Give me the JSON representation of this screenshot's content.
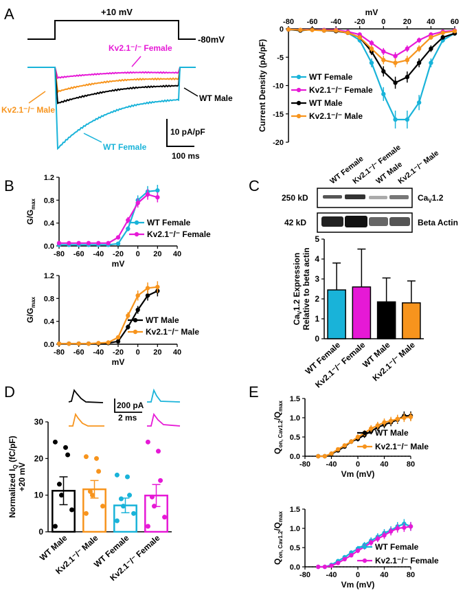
{
  "colors": {
    "wt_female": "#19b3d9",
    "kv_female": "#e619d6",
    "wt_male": "#000000",
    "kv_male": "#f7941d"
  },
  "panel_letters": {
    "A": "A",
    "B": "B",
    "C": "C",
    "D": "D",
    "E": "E"
  },
  "panel_a_traces": {
    "protocol_top": "+10 mV",
    "protocol_hold": "-80mV",
    "labels": {
      "kv_female": "Kv2.1⁻/⁻ Female",
      "kv_male": "Kv2.1⁻/⁻ Male",
      "wt_male": "WT Male",
      "wt_female": "WT Female"
    },
    "scale_y": "10 pA/pF",
    "scale_x": "100 ms"
  },
  "chart_data": [
    {
      "id": "iv",
      "type": "line",
      "panel": "A",
      "xlabel": "mV",
      "ylabel": "Current Density (pA/pF)",
      "xlim": [
        -80,
        60
      ],
      "ylim": [
        -20,
        0
      ],
      "xticks": [
        "-80",
        "-60",
        "-40",
        "-20",
        "0",
        "20",
        "40",
        "60"
      ],
      "yticks": [
        "0",
        "-5",
        "-10",
        "-15",
        "-20"
      ],
      "x": [
        -80,
        -70,
        -60,
        -50,
        -40,
        -30,
        -20,
        -10,
        0,
        10,
        20,
        30,
        40,
        50,
        60
      ],
      "series": [
        {
          "name": "WT Female",
          "color_key": "wt_female",
          "values": [
            -0.1,
            -0.3,
            -0.1,
            -0.2,
            -0.3,
            -0.7,
            -2,
            -6,
            -11.5,
            -16,
            -16,
            -13,
            -6,
            -2,
            -0.8
          ]
        },
        {
          "name": "Kv2.1⁻/⁻ Female",
          "color_key": "kv_female",
          "values": [
            -0.1,
            -0.2,
            -0.1,
            -0.2,
            -0.2,
            -0.5,
            -1,
            -2.5,
            -4,
            -4.8,
            -3.5,
            -2,
            -1,
            -0.5,
            -0.3
          ]
        },
        {
          "name": "WT Male",
          "color_key": "wt_male",
          "values": [
            -0.1,
            -0.3,
            -0.1,
            -0.3,
            -0.4,
            -0.7,
            -1.5,
            -4,
            -7.5,
            -9.5,
            -8.5,
            -6,
            -3.5,
            -1.5,
            -0.8
          ]
        },
        {
          "name": "Kv2.1⁻/⁻ Male",
          "color_key": "kv_male",
          "values": [
            -0.1,
            -0.2,
            -0.2,
            -0.3,
            -0.3,
            -0.7,
            -1.5,
            -3.5,
            -5.5,
            -6,
            -5.5,
            -3.5,
            -1.5,
            -0.7,
            -0.4
          ]
        }
      ]
    },
    {
      "id": "gv_female",
      "type": "line",
      "panel": "B",
      "xlabel": "mV",
      "ylabel": "G/G",
      "ylabel_sub": "max",
      "xlim": [
        -80,
        40
      ],
      "ylim": [
        0,
        1.2
      ],
      "xticks": [
        "-80",
        "-60",
        "-40",
        "-20",
        "0",
        "20",
        "40"
      ],
      "yticks": [
        "0.0",
        "0.4",
        "0.8",
        "1.2"
      ],
      "x": [
        -80,
        -70,
        -60,
        -50,
        -40,
        -30,
        -20,
        -10,
        0,
        10,
        20
      ],
      "series": [
        {
          "name": "WT Female",
          "color_key": "wt_female",
          "values": [
            0.02,
            0.02,
            0.02,
            0.02,
            0.02,
            0.02,
            0.04,
            0.3,
            0.8,
            0.95,
            0.97
          ]
        },
        {
          "name": "Kv2.1⁻/⁻ Female",
          "color_key": "kv_female",
          "values": [
            0.05,
            0.05,
            0.05,
            0.05,
            0.05,
            0.05,
            0.15,
            0.45,
            0.75,
            0.9,
            0.85
          ]
        }
      ]
    },
    {
      "id": "gv_male",
      "type": "line",
      "panel": "B",
      "xlabel": "mV",
      "ylabel": "G/G",
      "ylabel_sub": "max",
      "xlim": [
        -80,
        40
      ],
      "ylim": [
        0,
        1.2
      ],
      "xticks": [
        "-80",
        "-60",
        "-40",
        "-20",
        "0",
        "20",
        "40"
      ],
      "yticks": [
        "0.0",
        "0.4",
        "0.8",
        "1.2"
      ],
      "x": [
        -80,
        -70,
        -60,
        -50,
        -40,
        -30,
        -20,
        -10,
        0,
        10,
        20
      ],
      "series": [
        {
          "name": "WT Male",
          "color_key": "wt_male",
          "values": [
            0.01,
            0.01,
            0.01,
            0.01,
            0.01,
            0.02,
            0.05,
            0.3,
            0.6,
            0.85,
            0.93
          ]
        },
        {
          "name": "Kv2.1⁻/⁻ Male",
          "color_key": "kv_male",
          "values": [
            0.01,
            0.01,
            0.01,
            0.01,
            0.02,
            0.03,
            0.12,
            0.5,
            0.85,
            0.98,
            1.0
          ]
        }
      ]
    },
    {
      "id": "cav_expr",
      "type": "bar",
      "panel": "C",
      "ylabel_line1": "Ca",
      "ylabel_sub": "V",
      "ylabel_rest": "1.2 Expression",
      "ylabel_line2": "Relative to beta actin",
      "ylim": [
        0,
        5
      ],
      "yticks": [
        "0",
        "1",
        "2",
        "3",
        "4",
        "5"
      ],
      "categories": [
        "WT Female",
        "Kv2.1⁻/⁻ Female",
        "WT Male",
        "Kv2.1⁻/⁻ Male"
      ],
      "color_keys": [
        "wt_female",
        "kv_female",
        "wt_male",
        "kv_male"
      ],
      "values": [
        2.45,
        2.6,
        1.85,
        1.8
      ],
      "errors": [
        1.35,
        1.9,
        1.2,
        1.1
      ],
      "blot_labels": {
        "band1": "250 kD",
        "band2": "42 kD",
        "protein1_main": "Ca",
        "protein1_sub": "V",
        "protein1_rest": "1.2",
        "protein2": "Beta Actin"
      }
    },
    {
      "id": "gating_charge",
      "type": "bar",
      "panel": "D",
      "ylabel_line1": "Normalized I",
      "ylabel_sub": "Q",
      "ylabel_rest": " (fC/pF)",
      "ylabel_line2": "+20 mV",
      "ylim": [
        0,
        30
      ],
      "yticks": [
        "0",
        "10",
        "20",
        "30"
      ],
      "categories": [
        "WT Male",
        "Kv2.1⁻/⁻ Male",
        "WT Female",
        "Kv2.1⁻/⁻ Female"
      ],
      "color_keys": [
        "wt_male",
        "kv_male",
        "wt_female",
        "kv_female"
      ],
      "values": [
        11.2,
        11.6,
        7.2,
        9.9
      ],
      "errors": [
        3.8,
        2.4,
        2.0,
        3.0
      ],
      "points": [
        [
          24.5,
          23,
          21,
          13,
          10,
          6,
          1.5
        ],
        [
          20.5,
          20,
          16.5,
          11,
          10,
          7,
          5
        ],
        [
          15.5,
          15,
          10,
          9,
          7,
          5,
          3
        ],
        [
          24.5,
          22,
          14,
          9.5,
          7,
          4,
          1.5
        ]
      ],
      "scale_y": "200 pA",
      "scale_x": "2 ms"
    },
    {
      "id": "qv_male",
      "type": "line",
      "panel": "E",
      "xlabel": "Vm (mV)",
      "ylabel_main": "Q",
      "ylabel_sub": "on, Cav1.2",
      "ylabel_rest": "/Q",
      "ylabel_sub2": "max",
      "xlim": [
        -80,
        80
      ],
      "ylim": [
        0,
        1.5
      ],
      "xticks": [
        "-80",
        "-40",
        "0",
        "40",
        "80"
      ],
      "yticks": [
        "0.0",
        "0.5",
        "1.0",
        "1.5"
      ],
      "x": [
        -60,
        -50,
        -40,
        -30,
        -20,
        -10,
        0,
        10,
        20,
        30,
        40,
        50,
        60,
        70,
        80
      ],
      "series": [
        {
          "name": "WT Male",
          "color_key": "wt_male",
          "values": [
            0.0,
            0.0,
            0.06,
            0.15,
            0.25,
            0.38,
            0.45,
            0.55,
            0.65,
            0.75,
            0.82,
            0.88,
            0.95,
            1.05,
            1.05
          ]
        },
        {
          "name": "Kv2.1⁻/⁻ Male",
          "color_key": "kv_male",
          "values": [
            0.0,
            0.0,
            0.07,
            0.18,
            0.28,
            0.38,
            0.5,
            0.6,
            0.72,
            0.8,
            0.88,
            0.92,
            0.97,
            1.0,
            1.02
          ]
        }
      ]
    },
    {
      "id": "qv_female",
      "type": "line",
      "panel": "E",
      "xlabel": "Vm (mV)",
      "ylabel_main": "Q",
      "ylabel_sub": "on, Cav1.2",
      "ylabel_rest": "/Q",
      "ylabel_sub2": "max",
      "xlim": [
        -80,
        80
      ],
      "ylim": [
        0,
        1.5
      ],
      "xticks": [
        "-80",
        "-40",
        "0",
        "40",
        "80"
      ],
      "yticks": [
        "0.0",
        "0.5",
        "1.0",
        "1.5"
      ],
      "x": [
        -60,
        -50,
        -40,
        -30,
        -20,
        -10,
        0,
        10,
        20,
        30,
        40,
        50,
        60,
        70,
        80
      ],
      "series": [
        {
          "name": "WT Female",
          "color_key": "wt_female",
          "values": [
            0.0,
            0.0,
            0.05,
            0.15,
            0.25,
            0.37,
            0.47,
            0.57,
            0.68,
            0.78,
            0.88,
            0.95,
            1.05,
            1.12,
            1.05
          ]
        },
        {
          "name": "Kv2.1⁻/⁻ Female",
          "color_key": "kv_female",
          "values": [
            0.0,
            0.0,
            0.03,
            0.1,
            0.2,
            0.3,
            0.42,
            0.52,
            0.63,
            0.73,
            0.82,
            0.92,
            1.0,
            1.02,
            1.05
          ]
        }
      ]
    }
  ]
}
